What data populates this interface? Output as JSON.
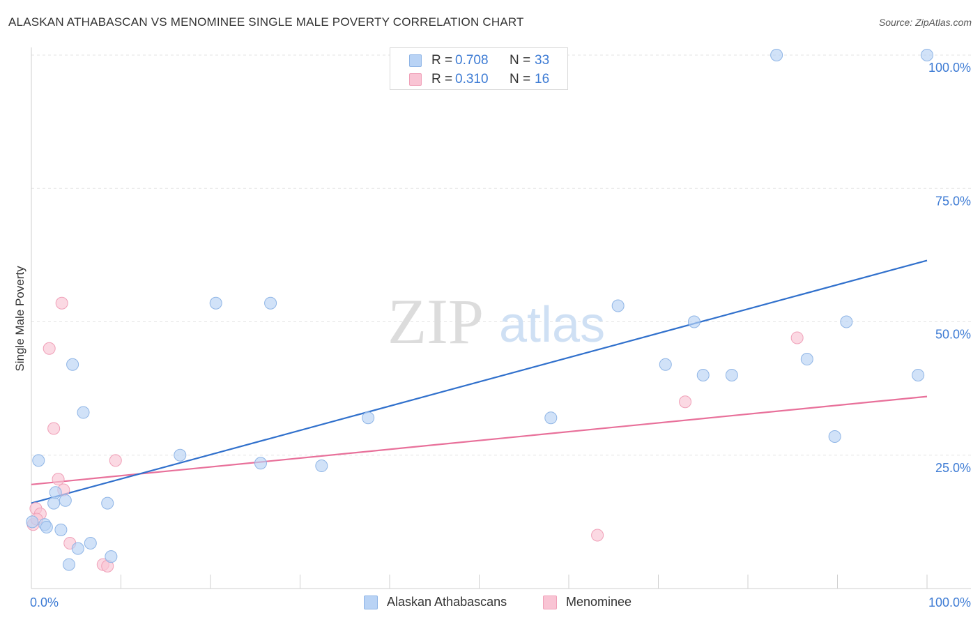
{
  "title": "ALASKAN ATHABASCAN VS MENOMINEE SINGLE MALE POVERTY CORRELATION CHART",
  "source": "Source: ZipAtlas.com",
  "watermark": {
    "zip": "ZIP",
    "atlas": "atlas"
  },
  "legend_top": [
    {
      "r_label": "R =",
      "r_value": "0.708",
      "n_label": "N =",
      "n_value": "33"
    },
    {
      "r_label": "R =",
      "r_value": "0.310",
      "n_label": "N =",
      "n_value": "16"
    }
  ],
  "colors": {
    "blue_fill": "#b9d3f5",
    "blue_stroke": "#8fb5e6",
    "blue_line": "#3070cc",
    "pink_fill": "#f9c4d4",
    "pink_stroke": "#f0a0b8",
    "pink_line": "#e8709a",
    "tick_text": "#3d7bd4",
    "grid": "#e3e3e3"
  },
  "chart_data": {
    "type": "scatter",
    "title": "ALASKAN ATHABASCAN VS MENOMINEE SINGLE MALE POVERTY CORRELATION CHART",
    "xlabel": "",
    "ylabel": "Single Male Poverty",
    "xlim": [
      0,
      100
    ],
    "ylim": [
      0,
      100
    ],
    "x_tick_labels": [
      "0.0%",
      "100.0%"
    ],
    "y_tick_labels": [
      "25.0%",
      "50.0%",
      "75.0%",
      "100.0%"
    ],
    "y_ticks": [
      25,
      50,
      75,
      100
    ],
    "grid": "horizontal dashed",
    "legend_position": "top-center",
    "series": [
      {
        "name": "Alaskan Athabascans",
        "color": "#b9d3f5",
        "points": [
          [
            0.1,
            12.5
          ],
          [
            0.8,
            24
          ],
          [
            1.5,
            12
          ],
          [
            1.7,
            11.5
          ],
          [
            2.5,
            16
          ],
          [
            2.7,
            18
          ],
          [
            3.3,
            11
          ],
          [
            3.8,
            16.5
          ],
          [
            4.2,
            4.5
          ],
          [
            4.6,
            42
          ],
          [
            5.2,
            7.5
          ],
          [
            5.8,
            33
          ],
          [
            6.6,
            8.5
          ],
          [
            8.5,
            16
          ],
          [
            8.9,
            6
          ],
          [
            16.6,
            25
          ],
          [
            20.6,
            53.5
          ],
          [
            25.6,
            23.5
          ],
          [
            26.7,
            53.5
          ],
          [
            32.4,
            23
          ],
          [
            37.6,
            32
          ],
          [
            58,
            32
          ],
          [
            65.5,
            53
          ],
          [
            70.8,
            42
          ],
          [
            74,
            50
          ],
          [
            75,
            40
          ],
          [
            78.2,
            40
          ],
          [
            83.2,
            100
          ],
          [
            86.6,
            43
          ],
          [
            89.7,
            28.5
          ],
          [
            91,
            50
          ],
          [
            99,
            40
          ],
          [
            100,
            100
          ]
        ],
        "trendline": {
          "x": [
            0,
            100
          ],
          "y": [
            16,
            61.5
          ]
        }
      },
      {
        "name": "Menominee",
        "color": "#f9c4d4",
        "points": [
          [
            0.2,
            12
          ],
          [
            0.5,
            15
          ],
          [
            1.0,
            14
          ],
          [
            2.0,
            45
          ],
          [
            2.5,
            30
          ],
          [
            3.0,
            20.5
          ],
          [
            3.4,
            53.5
          ],
          [
            3.6,
            18.5
          ],
          [
            4.3,
            8.5
          ],
          [
            8.0,
            4.5
          ],
          [
            8.5,
            4.2
          ],
          [
            9.4,
            24
          ],
          [
            63.2,
            10
          ],
          [
            73,
            35
          ],
          [
            85.5,
            47
          ],
          [
            0.6,
            13
          ]
        ],
        "trendline": {
          "x": [
            0,
            100
          ],
          "y": [
            19.5,
            36
          ]
        }
      }
    ]
  },
  "legend_bottom": [
    {
      "label": "Alaskan Athabascans"
    },
    {
      "label": "Menominee"
    }
  ]
}
